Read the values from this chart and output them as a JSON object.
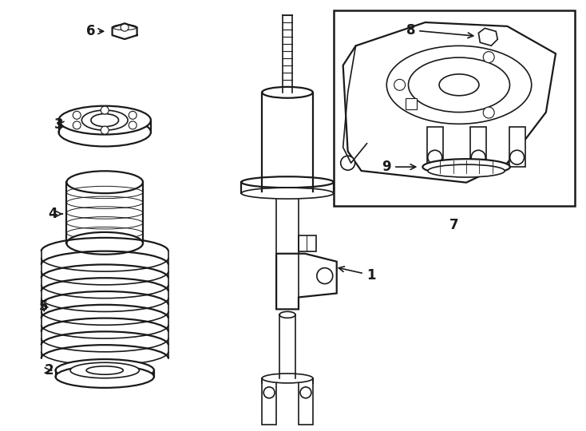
{
  "bg_color": "#ffffff",
  "line_color": "#1a1a1a",
  "label_color": "#000000",
  "figure_width": 7.34,
  "figure_height": 5.4,
  "dpi": 100
}
